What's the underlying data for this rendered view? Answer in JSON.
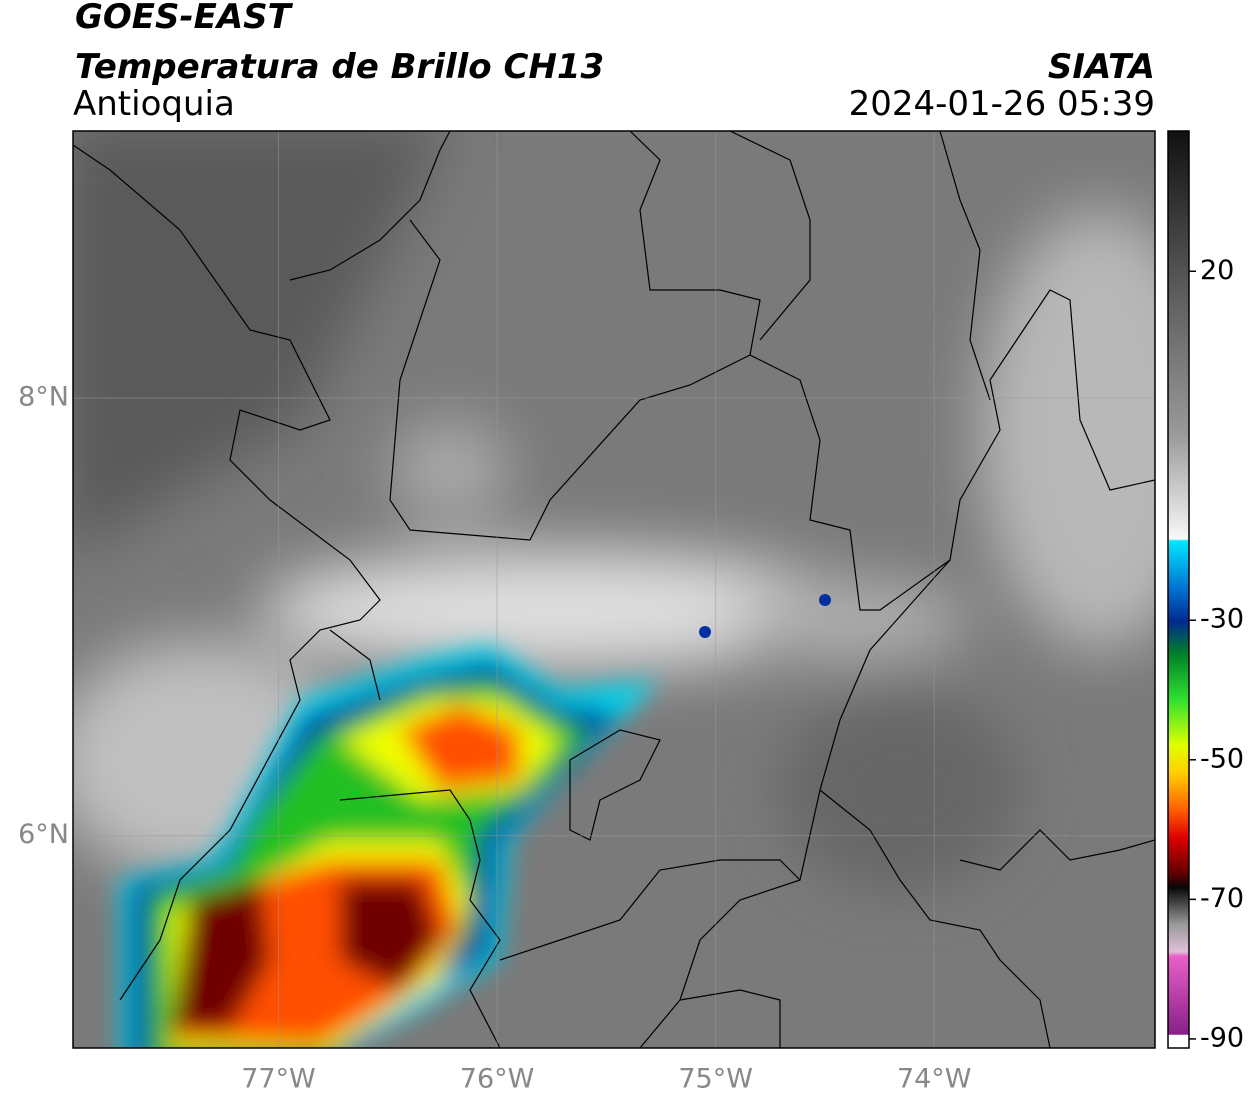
{
  "header": {
    "title": "GOES-EAST",
    "subtitle": "Temperatura de Brillo CH13",
    "region": "Antioquia",
    "source": "SIATA",
    "datetime": "2024-01-26 05:39"
  },
  "map": {
    "xlim": [
      -77.94,
      -72.99
    ],
    "ylim": [
      5.03,
      9.22
    ],
    "xticks": [
      {
        "value": -77,
        "label": "77°W"
      },
      {
        "value": -76,
        "label": "76°W"
      },
      {
        "value": -75,
        "label": "75°W"
      },
      {
        "value": -74,
        "label": "74°W"
      }
    ],
    "yticks": [
      {
        "value": 6,
        "label": "6°N"
      },
      {
        "value": 8,
        "label": "8°N"
      }
    ],
    "grid": true
  },
  "colorbar": {
    "lim": [
      -91.3,
      40.1
    ],
    "ticks": [
      20,
      -30,
      -50,
      -70,
      -90
    ]
  }
}
